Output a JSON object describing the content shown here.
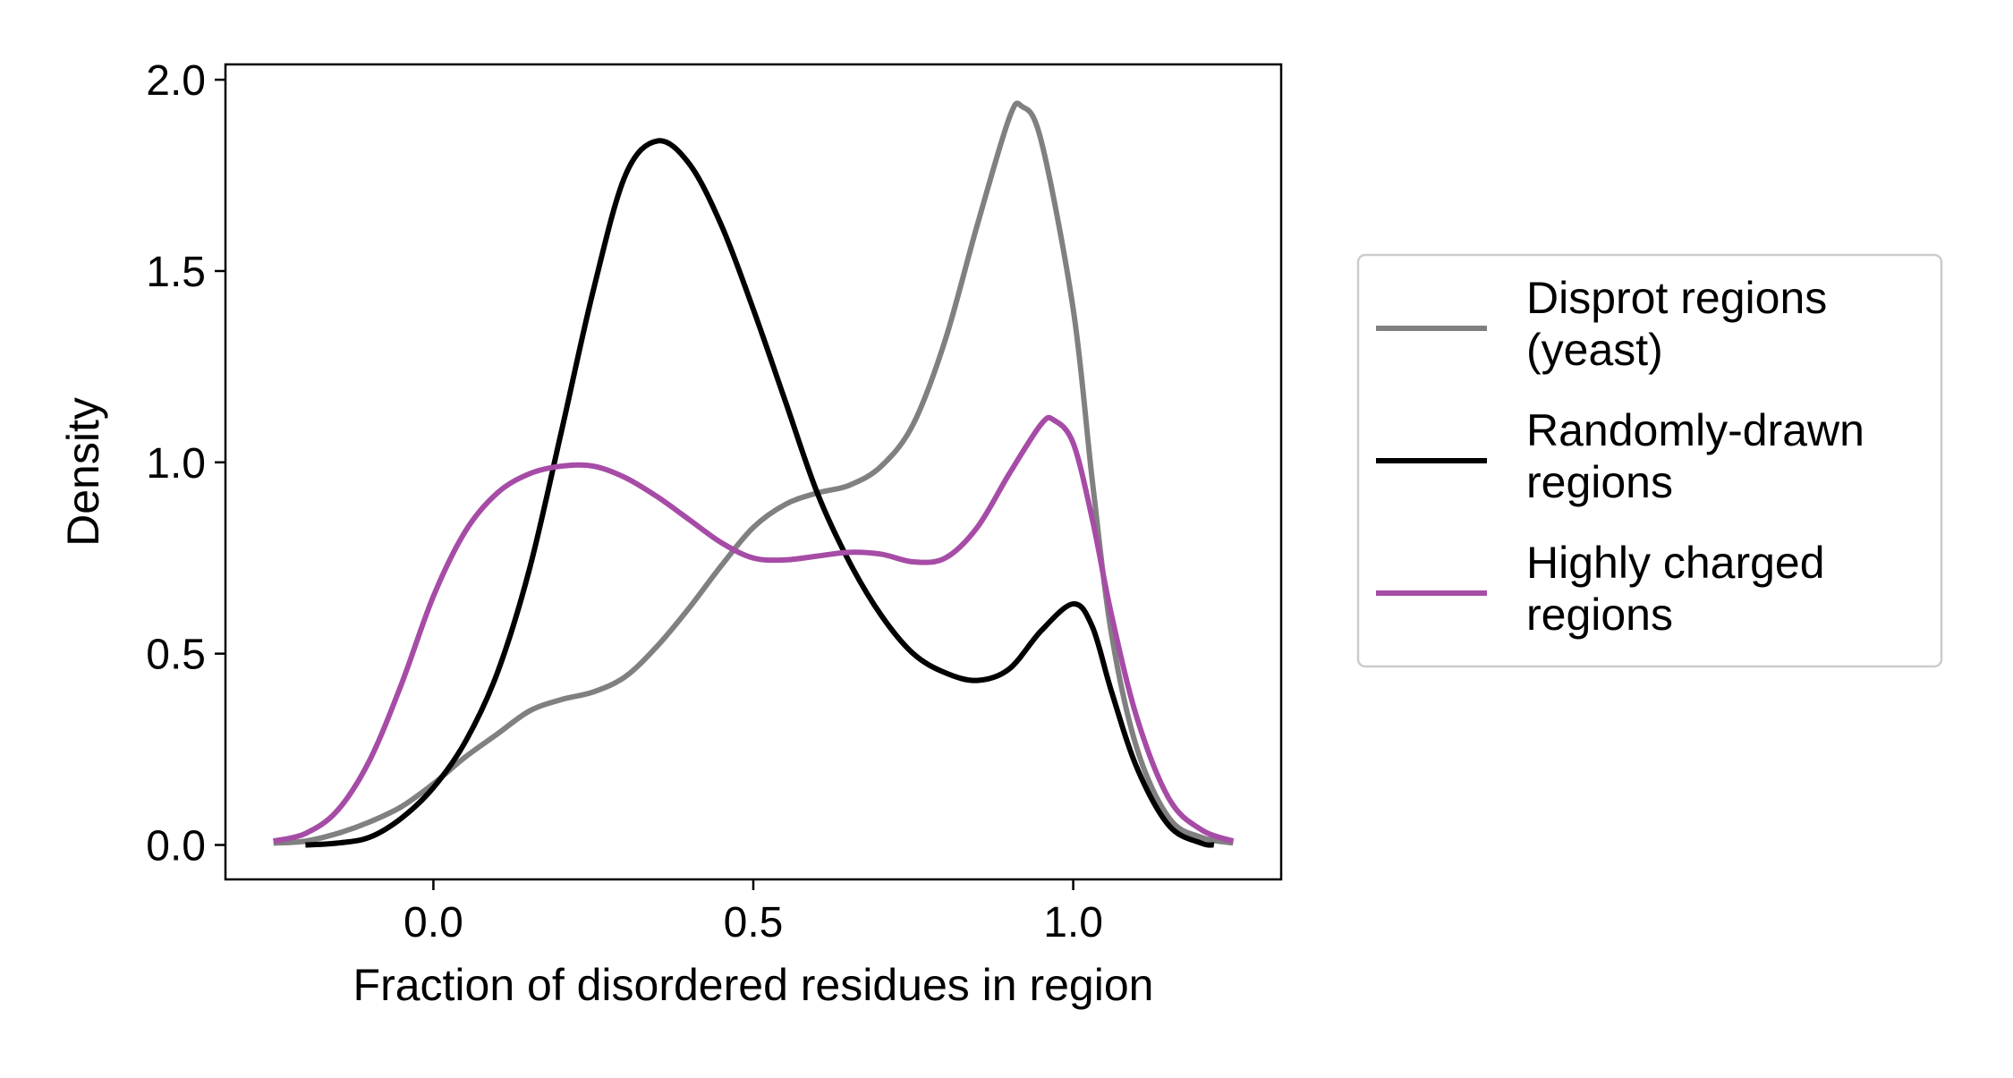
{
  "chart_data": {
    "type": "line",
    "title": "",
    "xlabel": "Fraction of disordered residues in region",
    "ylabel": "Density",
    "xlim": [
      -0.325,
      1.325
    ],
    "ylim": [
      -0.09,
      2.04
    ],
    "xticks": [
      0.0,
      0.5,
      1.0
    ],
    "xtick_labels": [
      "0.0",
      "0.5",
      "1.0"
    ],
    "yticks": [
      0.0,
      0.5,
      1.0,
      1.5,
      2.0
    ],
    "ytick_labels": [
      "0.0",
      "0.5",
      "1.0",
      "1.5",
      "2.0"
    ],
    "grid": false,
    "legend_position": "outside-right",
    "series": [
      {
        "name": "Disprot regions\n(yeast)",
        "color": "#808080",
        "points": [
          [
            -0.25,
            0.005
          ],
          [
            -0.2,
            0.01
          ],
          [
            -0.15,
            0.03
          ],
          [
            -0.1,
            0.06
          ],
          [
            -0.05,
            0.1
          ],
          [
            0.0,
            0.16
          ],
          [
            0.05,
            0.23
          ],
          [
            0.1,
            0.29
          ],
          [
            0.15,
            0.35
          ],
          [
            0.2,
            0.38
          ],
          [
            0.25,
            0.4
          ],
          [
            0.3,
            0.44
          ],
          [
            0.35,
            0.52
          ],
          [
            0.4,
            0.62
          ],
          [
            0.45,
            0.73
          ],
          [
            0.5,
            0.83
          ],
          [
            0.55,
            0.89
          ],
          [
            0.6,
            0.92
          ],
          [
            0.65,
            0.94
          ],
          [
            0.7,
            0.99
          ],
          [
            0.75,
            1.1
          ],
          [
            0.8,
            1.32
          ],
          [
            0.85,
            1.62
          ],
          [
            0.9,
            1.9
          ],
          [
            0.92,
            1.93
          ],
          [
            0.95,
            1.84
          ],
          [
            1.0,
            1.4
          ],
          [
            1.03,
            0.95
          ],
          [
            1.06,
            0.55
          ],
          [
            1.1,
            0.25
          ],
          [
            1.15,
            0.07
          ],
          [
            1.2,
            0.02
          ],
          [
            1.25,
            0.005
          ]
        ]
      },
      {
        "name": "Randomly-drawn\nregions",
        "color": "#000000",
        "points": [
          [
            -0.2,
            0.0
          ],
          [
            -0.15,
            0.005
          ],
          [
            -0.1,
            0.02
          ],
          [
            -0.05,
            0.07
          ],
          [
            0.0,
            0.15
          ],
          [
            0.05,
            0.27
          ],
          [
            0.1,
            0.45
          ],
          [
            0.15,
            0.72
          ],
          [
            0.2,
            1.08
          ],
          [
            0.25,
            1.45
          ],
          [
            0.3,
            1.75
          ],
          [
            0.35,
            1.84
          ],
          [
            0.4,
            1.78
          ],
          [
            0.45,
            1.62
          ],
          [
            0.5,
            1.4
          ],
          [
            0.55,
            1.16
          ],
          [
            0.6,
            0.92
          ],
          [
            0.65,
            0.74
          ],
          [
            0.7,
            0.6
          ],
          [
            0.75,
            0.5
          ],
          [
            0.8,
            0.45
          ],
          [
            0.85,
            0.43
          ],
          [
            0.9,
            0.46
          ],
          [
            0.95,
            0.56
          ],
          [
            1.0,
            0.63
          ],
          [
            1.03,
            0.57
          ],
          [
            1.06,
            0.4
          ],
          [
            1.1,
            0.2
          ],
          [
            1.15,
            0.05
          ],
          [
            1.2,
            0.005
          ],
          [
            1.22,
            0.0
          ]
        ]
      },
      {
        "name": "Highly charged\nregions",
        "color": "#a64ca6",
        "points": [
          [
            -0.25,
            0.01
          ],
          [
            -0.2,
            0.03
          ],
          [
            -0.15,
            0.09
          ],
          [
            -0.1,
            0.22
          ],
          [
            -0.05,
            0.42
          ],
          [
            0.0,
            0.65
          ],
          [
            0.05,
            0.82
          ],
          [
            0.1,
            0.92
          ],
          [
            0.15,
            0.97
          ],
          [
            0.2,
            0.99
          ],
          [
            0.25,
            0.99
          ],
          [
            0.3,
            0.96
          ],
          [
            0.35,
            0.91
          ],
          [
            0.4,
            0.85
          ],
          [
            0.45,
            0.79
          ],
          [
            0.5,
            0.75
          ],
          [
            0.55,
            0.745
          ],
          [
            0.6,
            0.755
          ],
          [
            0.65,
            0.765
          ],
          [
            0.7,
            0.76
          ],
          [
            0.75,
            0.74
          ],
          [
            0.8,
            0.75
          ],
          [
            0.85,
            0.83
          ],
          [
            0.9,
            0.97
          ],
          [
            0.95,
            1.1
          ],
          [
            0.97,
            1.11
          ],
          [
            1.0,
            1.05
          ],
          [
            1.03,
            0.85
          ],
          [
            1.06,
            0.6
          ],
          [
            1.1,
            0.33
          ],
          [
            1.15,
            0.12
          ],
          [
            1.2,
            0.04
          ],
          [
            1.25,
            0.01
          ]
        ]
      }
    ]
  }
}
